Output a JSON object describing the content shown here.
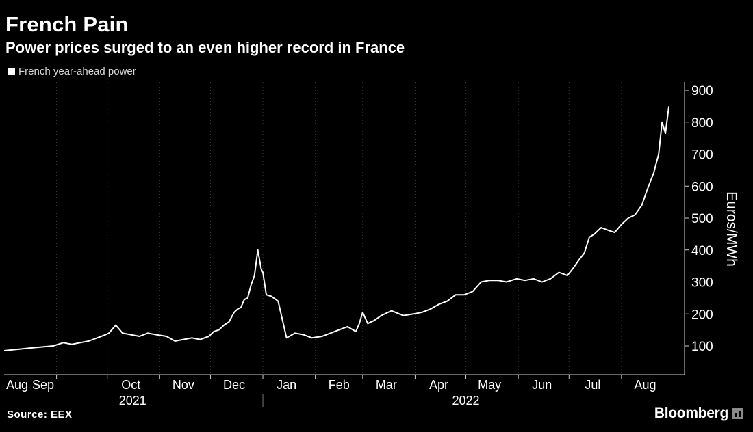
{
  "header": {
    "title": "French Pain",
    "subtitle": "Power prices surged to an even higher record in France"
  },
  "footer": {
    "source": "Source: EEX",
    "brand": "Bloomberg",
    "brand_icon": "bar-chart-icon"
  },
  "colors": {
    "background": "#000000",
    "line": "#ffffff",
    "grid": "#3a3a3a",
    "text": "#ffffff"
  },
  "chart_data": {
    "type": "line",
    "title": "French Pain",
    "subtitle": "Power prices surged to an even higher record in France",
    "ylabel": "Euros/MWh",
    "xlabel": "",
    "ylim": [
      0,
      900
    ],
    "yticks": [
      100,
      200,
      300,
      400,
      500,
      600,
      700,
      800,
      900
    ],
    "y_axis_side": "right",
    "grid": "vertical-dotted",
    "legend_position": "top-left",
    "x_range": [
      "2021-08-01",
      "2022-08-31"
    ],
    "month_ticks": [
      {
        "label": "Aug",
        "date": "2021-08-15"
      },
      {
        "label": "Sep",
        "date": "2021-09-15"
      },
      {
        "label": "Oct",
        "date": "2021-10-15"
      },
      {
        "label": "Nov",
        "date": "2021-11-15"
      },
      {
        "label": "Dec",
        "date": "2021-12-15"
      },
      {
        "label": "Jan",
        "date": "2022-01-15"
      },
      {
        "label": "Feb",
        "date": "2022-02-15"
      },
      {
        "label": "Mar",
        "date": "2022-03-15"
      },
      {
        "label": "Apr",
        "date": "2022-04-15"
      },
      {
        "label": "May",
        "date": "2022-05-15"
      },
      {
        "label": "Jun",
        "date": "2022-06-15"
      },
      {
        "label": "Jul",
        "date": "2022-07-15"
      },
      {
        "label": "Aug",
        "date": "2022-08-15"
      }
    ],
    "month_boundaries": [
      "2021-09-01",
      "2021-10-01",
      "2021-11-01",
      "2021-12-01",
      "2022-01-01",
      "2022-02-01",
      "2022-03-01",
      "2022-04-01",
      "2022-05-01",
      "2022-06-01",
      "2022-07-01",
      "2022-08-01"
    ],
    "year_labels": [
      {
        "label": "2021",
        "date": "2021-10-16"
      },
      {
        "label": "2022",
        "date": "2022-05-01"
      }
    ],
    "year_divider": "2022-01-01",
    "series": [
      {
        "name": "French year-ahead power",
        "x": [
          "2021-08-01",
          "2021-08-10",
          "2021-08-20",
          "2021-08-30",
          "2021-09-05",
          "2021-09-10",
          "2021-09-15",
          "2021-09-20",
          "2021-09-25",
          "2021-09-30",
          "2021-10-02",
          "2021-10-06",
          "2021-10-10",
          "2021-10-15",
          "2021-10-20",
          "2021-10-25",
          "2021-10-30",
          "2021-11-05",
          "2021-11-10",
          "2021-11-15",
          "2021-11-20",
          "2021-11-25",
          "2021-11-30",
          "2021-12-03",
          "2021-12-06",
          "2021-12-09",
          "2021-12-12",
          "2021-12-15",
          "2021-12-17",
          "2021-12-19",
          "2021-12-21",
          "2021-12-23",
          "2021-12-25",
          "2021-12-27",
          "2021-12-29",
          "2021-12-31",
          "2022-01-01",
          "2022-01-03",
          "2022-01-06",
          "2022-01-10",
          "2022-01-15",
          "2022-01-20",
          "2022-01-25",
          "2022-01-30",
          "2022-02-05",
          "2022-02-10",
          "2022-02-15",
          "2022-02-20",
          "2022-02-25",
          "2022-02-27",
          "2022-03-01",
          "2022-03-04",
          "2022-03-08",
          "2022-03-12",
          "2022-03-18",
          "2022-03-25",
          "2022-03-31",
          "2022-04-05",
          "2022-04-10",
          "2022-04-15",
          "2022-04-20",
          "2022-04-25",
          "2022-04-30",
          "2022-05-05",
          "2022-05-10",
          "2022-05-15",
          "2022-05-20",
          "2022-05-25",
          "2022-05-31",
          "2022-06-05",
          "2022-06-10",
          "2022-06-15",
          "2022-06-20",
          "2022-06-25",
          "2022-06-30",
          "2022-07-03",
          "2022-07-07",
          "2022-07-10",
          "2022-07-13",
          "2022-07-16",
          "2022-07-20",
          "2022-07-25",
          "2022-07-28",
          "2022-08-01",
          "2022-08-05",
          "2022-08-09",
          "2022-08-13",
          "2022-08-17",
          "2022-08-20",
          "2022-08-23",
          "2022-08-25",
          "2022-08-27",
          "2022-08-29"
        ],
        "y": [
          85,
          90,
          95,
          100,
          110,
          105,
          110,
          115,
          125,
          135,
          140,
          165,
          140,
          135,
          130,
          140,
          135,
          130,
          115,
          120,
          125,
          120,
          130,
          145,
          150,
          165,
          175,
          205,
          215,
          220,
          245,
          250,
          290,
          320,
          400,
          340,
          330,
          260,
          255,
          240,
          125,
          140,
          135,
          125,
          130,
          140,
          150,
          160,
          145,
          170,
          205,
          170,
          180,
          195,
          210,
          195,
          200,
          205,
          215,
          230,
          240,
          260,
          260,
          270,
          300,
          305,
          305,
          300,
          310,
          305,
          310,
          300,
          310,
          330,
          320,
          340,
          370,
          390,
          440,
          450,
          470,
          460,
          455,
          480,
          500,
          510,
          540,
          600,
          640,
          700,
          800,
          765,
          850
        ]
      }
    ]
  }
}
